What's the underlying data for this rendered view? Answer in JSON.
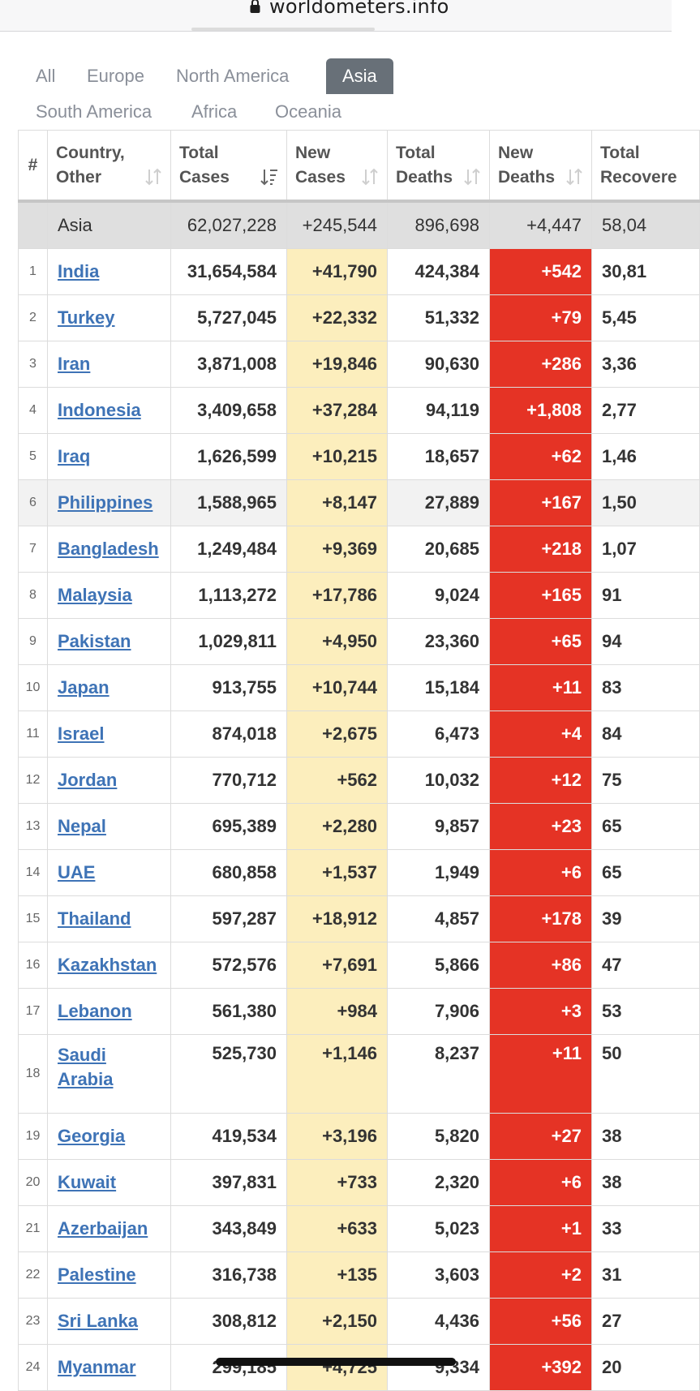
{
  "browser": {
    "domain": "worldometers.info",
    "lock_icon": "lock-icon"
  },
  "tabs": [
    {
      "label": "All",
      "active": false
    },
    {
      "label": "Europe",
      "active": false
    },
    {
      "label": "North America",
      "active": false
    },
    {
      "label": "Asia",
      "active": true
    },
    {
      "label": "South America",
      "active": false
    },
    {
      "label": "Africa",
      "active": false
    },
    {
      "label": "Oceania",
      "active": false
    }
  ],
  "table": {
    "headers": [
      "#",
      "Country,\nOther",
      "Total\nCases",
      "New\nCases",
      "Total\nDeaths",
      "New\nDeaths",
      "Total\nRecovere"
    ],
    "total_row": {
      "label": "Asia",
      "total_cases": "62,027,228",
      "new_cases": "+245,544",
      "total_deaths": "896,698",
      "new_deaths": "+4,447",
      "total_recovered": "58,04"
    },
    "rows": [
      {
        "rank": "1",
        "country": "India",
        "total_cases": "31,654,584",
        "new_cases": "+41,790",
        "total_deaths": "424,384",
        "new_deaths": "+542",
        "total_recovered": "30,81"
      },
      {
        "rank": "2",
        "country": "Turkey",
        "total_cases": "5,727,045",
        "new_cases": "+22,332",
        "total_deaths": "51,332",
        "new_deaths": "+79",
        "total_recovered": "5,45"
      },
      {
        "rank": "3",
        "country": "Iran",
        "total_cases": "3,871,008",
        "new_cases": "+19,846",
        "total_deaths": "90,630",
        "new_deaths": "+286",
        "total_recovered": "3,36"
      },
      {
        "rank": "4",
        "country": "Indonesia",
        "total_cases": "3,409,658",
        "new_cases": "+37,284",
        "total_deaths": "94,119",
        "new_deaths": "+1,808",
        "total_recovered": "2,77"
      },
      {
        "rank": "5",
        "country": "Iraq",
        "total_cases": "1,626,599",
        "new_cases": "+10,215",
        "total_deaths": "18,657",
        "new_deaths": "+62",
        "total_recovered": "1,46"
      },
      {
        "rank": "6",
        "country": "Philippines",
        "total_cases": "1,588,965",
        "new_cases": "+8,147",
        "total_deaths": "27,889",
        "new_deaths": "+167",
        "total_recovered": "1,50"
      },
      {
        "rank": "7",
        "country": "Bangladesh",
        "total_cases": "1,249,484",
        "new_cases": "+9,369",
        "total_deaths": "20,685",
        "new_deaths": "+218",
        "total_recovered": "1,07"
      },
      {
        "rank": "8",
        "country": "Malaysia",
        "total_cases": "1,113,272",
        "new_cases": "+17,786",
        "total_deaths": "9,024",
        "new_deaths": "+165",
        "total_recovered": "91"
      },
      {
        "rank": "9",
        "country": "Pakistan",
        "total_cases": "1,029,811",
        "new_cases": "+4,950",
        "total_deaths": "23,360",
        "new_deaths": "+65",
        "total_recovered": "94"
      },
      {
        "rank": "10",
        "country": "Japan",
        "total_cases": "913,755",
        "new_cases": "+10,744",
        "total_deaths": "15,184",
        "new_deaths": "+11",
        "total_recovered": "83"
      },
      {
        "rank": "11",
        "country": "Israel",
        "total_cases": "874,018",
        "new_cases": "+2,675",
        "total_deaths": "6,473",
        "new_deaths": "+4",
        "total_recovered": "84"
      },
      {
        "rank": "12",
        "country": "Jordan",
        "total_cases": "770,712",
        "new_cases": "+562",
        "total_deaths": "10,032",
        "new_deaths": "+12",
        "total_recovered": "75"
      },
      {
        "rank": "13",
        "country": "Nepal",
        "total_cases": "695,389",
        "new_cases": "+2,280",
        "total_deaths": "9,857",
        "new_deaths": "+23",
        "total_recovered": "65"
      },
      {
        "rank": "14",
        "country": "UAE",
        "total_cases": "680,858",
        "new_cases": "+1,537",
        "total_deaths": "1,949",
        "new_deaths": "+6",
        "total_recovered": "65"
      },
      {
        "rank": "15",
        "country": "Thailand",
        "total_cases": "597,287",
        "new_cases": "+18,912",
        "total_deaths": "4,857",
        "new_deaths": "+178",
        "total_recovered": "39"
      },
      {
        "rank": "16",
        "country": "Kazakhstan",
        "total_cases": "572,576",
        "new_cases": "+7,691",
        "total_deaths": "5,866",
        "new_deaths": "+86",
        "total_recovered": "47"
      },
      {
        "rank": "17",
        "country": "Lebanon",
        "total_cases": "561,380",
        "new_cases": "+984",
        "total_deaths": "7,906",
        "new_deaths": "+3",
        "total_recovered": "53"
      },
      {
        "rank": "18",
        "country": "Saudi Arabia",
        "total_cases": "525,730",
        "new_cases": "+1,146",
        "total_deaths": "8,237",
        "new_deaths": "+11",
        "total_recovered": "50"
      },
      {
        "rank": "19",
        "country": "Georgia",
        "total_cases": "419,534",
        "new_cases": "+3,196",
        "total_deaths": "5,820",
        "new_deaths": "+27",
        "total_recovered": "38"
      },
      {
        "rank": "20",
        "country": "Kuwait",
        "total_cases": "397,831",
        "new_cases": "+733",
        "total_deaths": "2,320",
        "new_deaths": "+6",
        "total_recovered": "38"
      },
      {
        "rank": "21",
        "country": "Azerbaijan",
        "total_cases": "343,849",
        "new_cases": "+633",
        "total_deaths": "5,023",
        "new_deaths": "+1",
        "total_recovered": "33"
      },
      {
        "rank": "22",
        "country": "Palestine",
        "total_cases": "316,738",
        "new_cases": "+135",
        "total_deaths": "3,603",
        "new_deaths": "+2",
        "total_recovered": "31"
      },
      {
        "rank": "23",
        "country": "Sri Lanka",
        "total_cases": "308,812",
        "new_cases": "+2,150",
        "total_deaths": "4,436",
        "new_deaths": "+56",
        "total_recovered": "27"
      },
      {
        "rank": "24",
        "country": "Myanmar",
        "total_cases": "299,185",
        "new_cases": "+4,725",
        "total_deaths": "9,334",
        "new_deaths": "+392",
        "total_recovered": "20"
      }
    ]
  },
  "colors": {
    "new_cases_bg": "#fceebd",
    "new_deaths_bg": "#e53325",
    "link": "#3e73b6",
    "active_tab": "#687078"
  }
}
